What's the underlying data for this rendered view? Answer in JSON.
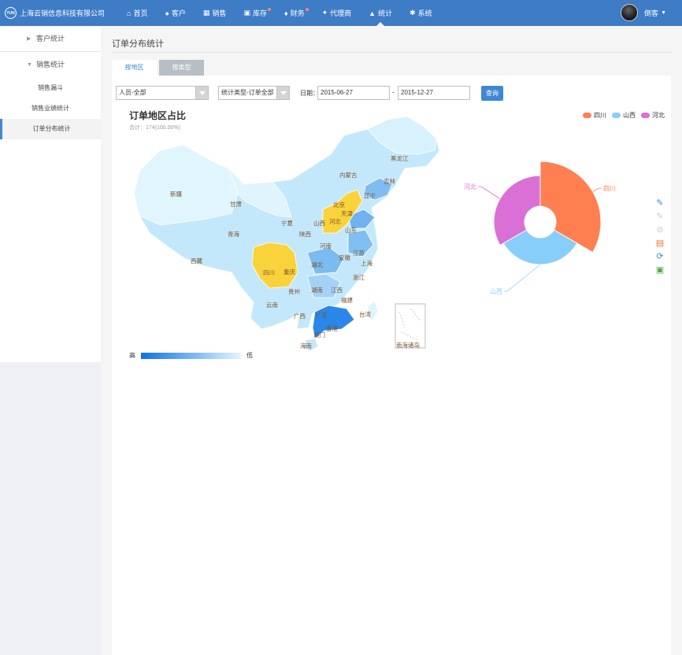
{
  "app": {
    "company": "上海云销信息科技有限公司",
    "logo_text": "YUN"
  },
  "nav": [
    {
      "label": "首页",
      "icon": "home-icon",
      "glyph": "⌂",
      "dot": false,
      "active": false
    },
    {
      "label": "客户",
      "icon": "person-icon",
      "glyph": "●",
      "dot": false,
      "active": false
    },
    {
      "label": "销售",
      "icon": "bar-chart-icon",
      "glyph": "▦",
      "dot": false,
      "active": false
    },
    {
      "label": "库存",
      "icon": "warehouse-icon",
      "glyph": "▣",
      "dot": true,
      "active": false
    },
    {
      "label": "财务",
      "icon": "money-bag-icon",
      "glyph": "♦",
      "dot": true,
      "active": false
    },
    {
      "label": "代理商",
      "icon": "group-icon",
      "glyph": "✦",
      "dot": false,
      "active": false
    },
    {
      "label": "统计",
      "icon": "stats-icon",
      "glyph": "▲",
      "dot": false,
      "active": true
    },
    {
      "label": "系统",
      "icon": "gear-icon",
      "glyph": "✱",
      "dot": false,
      "active": false
    }
  ],
  "user": {
    "name": "倒客"
  },
  "sidebar": {
    "group1": "客户统计",
    "group2": "销售统计",
    "items": [
      {
        "label": "销售漏斗",
        "active": false
      },
      {
        "label": "销售业绩统计",
        "active": false
      },
      {
        "label": "订单分布统计",
        "active": true
      }
    ]
  },
  "page": {
    "title": "订单分布统计"
  },
  "tabs": [
    {
      "label": "按地区",
      "active": true
    },
    {
      "label": "按类型",
      "active": false
    }
  ],
  "filters": {
    "person": "人员-全部",
    "stat_type": "统计类型-订单全部",
    "date_label": "日期：",
    "date_from": "2015-06-27",
    "date_sep": "-",
    "date_to": "2015-12-27",
    "query": "查询"
  },
  "colors": {
    "accent": "#3f87d6",
    "topbar": "#3f7cc6",
    "sichuan": "#ff7f50",
    "shanxi": "#87cefa",
    "hebei": "#da70d6",
    "highlight": "#fad33c"
  },
  "chart_data": {
    "type": "pie",
    "title": "订单地区占比",
    "subtitle": "合计：174(100.00%)",
    "legend": [
      "四川",
      "山西",
      "河北"
    ],
    "legend_position": "top-right",
    "series": [
      {
        "name": "订单",
        "categories": [
          "四川",
          "山西",
          "河北"
        ],
        "values": [
          58,
          58,
          58
        ],
        "colors": [
          "#ff7f50",
          "#87cefa",
          "#da70d6"
        ]
      }
    ],
    "map": {
      "provinces": [
        "新疆",
        "西藏",
        "青海",
        "甘肃",
        "内蒙古",
        "宁夏",
        "黑龙江",
        "吉林",
        "辽宁",
        "北京",
        "天津",
        "河北",
        "山西",
        "陕西",
        "山东",
        "河南",
        "江苏",
        "安徽",
        "上海",
        "湖北",
        "四川",
        "重庆",
        "浙江",
        "湖南",
        "江西",
        "贵州",
        "云南",
        "福建",
        "广西",
        "广东",
        "台湾",
        "香港",
        "澳门",
        "海南",
        "南海诸岛"
      ],
      "highlighted": [
        "四川",
        "山西",
        "河北"
      ],
      "visual_map": {
        "high": "高",
        "low": "低"
      }
    }
  }
}
